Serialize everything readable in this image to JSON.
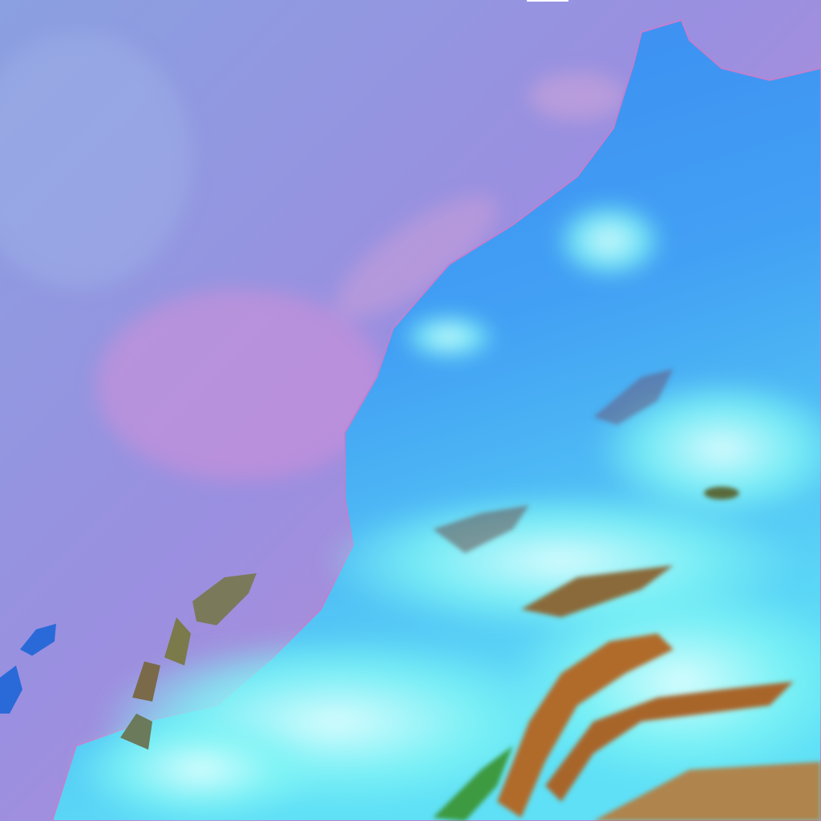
{
  "image": {
    "kind": "false-color satellite image",
    "regions": [
      "ocean",
      "coastline",
      "land",
      "cloud-cover",
      "mountains",
      "islands"
    ],
    "colors": {
      "ocean": "#8c8fe0",
      "ocean_pink": "#c48ed8",
      "land": "#3f8cf0",
      "cloud": "#7ff5f5",
      "cloud_bright": "#d8ffff",
      "mountain": "#b06a2a",
      "mountain_green": "#3c9a40",
      "island": "#2a6ad8",
      "top_bar": "#ffffff"
    }
  }
}
